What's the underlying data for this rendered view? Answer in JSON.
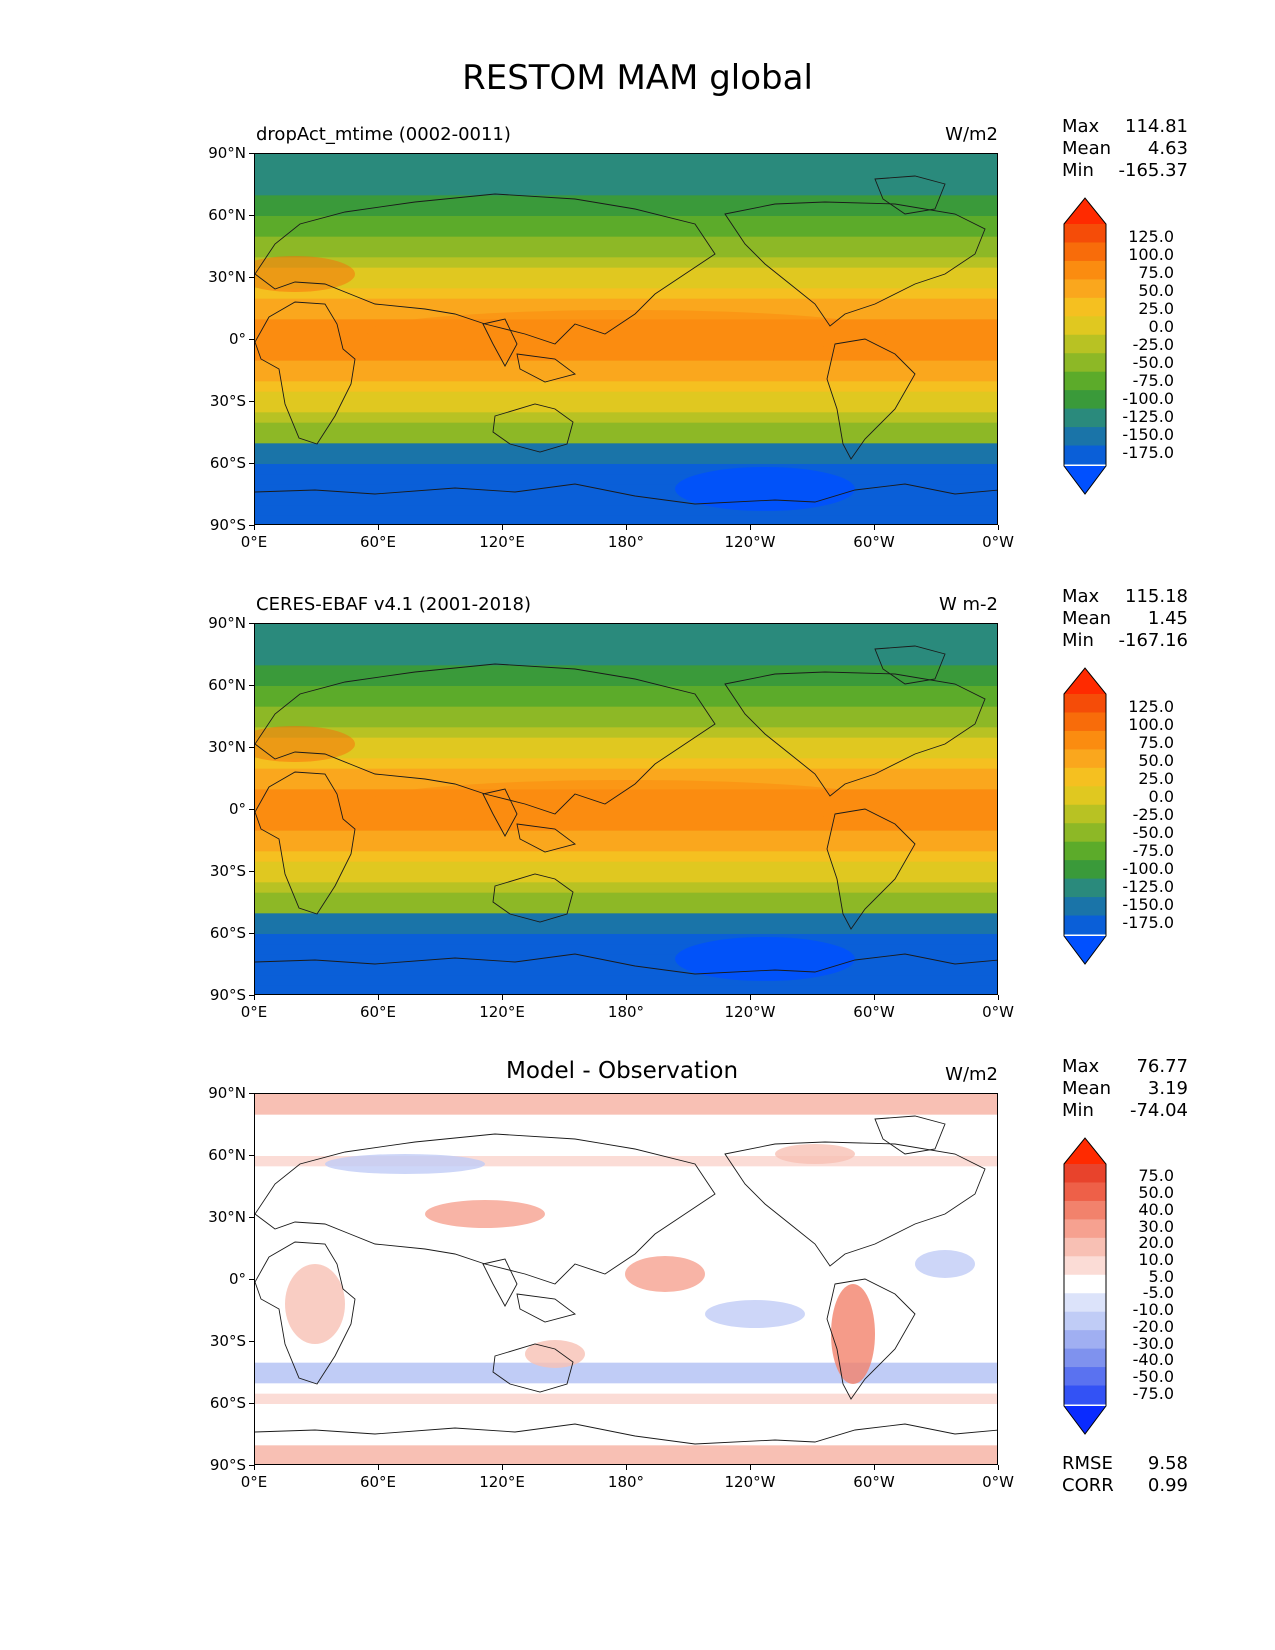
{
  "title": "RESTOM MAM global",
  "lat_ticks": [
    "90°N",
    "60°N",
    "30°N",
    "0°",
    "30°S",
    "60°S",
    "90°S"
  ],
  "lon_ticks": [
    "0°E",
    "60°E",
    "120°E",
    "180°",
    "120°W",
    "60°W",
    "0°W"
  ],
  "colors": {
    "abs_scale": [
      "#0050ff",
      "#0a5fd8",
      "#1a74a8",
      "#2a8a7c",
      "#3a9a3a",
      "#5cab2a",
      "#8db826",
      "#b8c223",
      "#e0c820",
      "#f5c020",
      "#faa71d",
      "#fb8c10",
      "#f86c0a",
      "#f54c08",
      "#ff2a00"
    ],
    "diff_scale": [
      "#0a2bff",
      "#3352f5",
      "#5a72f0",
      "#7f92ee",
      "#a0aff2",
      "#c0ccf6",
      "#dce3fa",
      "#ffffff",
      "#fbdcd6",
      "#f8c0b4",
      "#f6a190",
      "#f2826c",
      "#ee6048",
      "#e8432c",
      "#ff2a00"
    ]
  },
  "panels": [
    {
      "id": "test",
      "title": "dropAct_mtime (0002-0011)",
      "units": "W/m2",
      "stats": [
        {
          "label": "Max",
          "value": "114.81"
        },
        {
          "label": "Mean",
          "value": "4.63"
        },
        {
          "label": "Min",
          "value": "-165.37"
        }
      ],
      "colorbar_labels": [
        "125.0",
        "100.0",
        "75.0",
        "50.0",
        "25.0",
        "0.0",
        "-25.0",
        "-50.0",
        "-75.0",
        "-100.0",
        "-125.0",
        "-150.0",
        "-175.0"
      ],
      "scale": "abs_scale"
    },
    {
      "id": "ref",
      "title": "CERES-EBAF v4.1 (2001-2018)",
      "units": "W m-2",
      "stats": [
        {
          "label": "Max",
          "value": "115.18"
        },
        {
          "label": "Mean",
          "value": "1.45"
        },
        {
          "label": "Min",
          "value": "-167.16"
        }
      ],
      "colorbar_labels": [
        "125.0",
        "100.0",
        "75.0",
        "50.0",
        "25.0",
        "0.0",
        "-25.0",
        "-50.0",
        "-75.0",
        "-100.0",
        "-125.0",
        "-150.0",
        "-175.0"
      ],
      "scale": "abs_scale"
    },
    {
      "id": "diff",
      "title": "Model - Observation",
      "units": "W/m2",
      "stats": [
        {
          "label": "Max",
          "value": "76.77"
        },
        {
          "label": "Mean",
          "value": "3.19"
        },
        {
          "label": "Min",
          "value": "-74.04"
        }
      ],
      "colorbar_labels": [
        "75.0",
        "50.0",
        "40.0",
        "30.0",
        "20.0",
        "10.0",
        "5.0",
        "-5.0",
        "-10.0",
        "-20.0",
        "-30.0",
        "-40.0",
        "-50.0",
        "-75.0"
      ],
      "scale": "diff_scale",
      "metrics": [
        {
          "label": "RMSE",
          "value": "9.58"
        },
        {
          "label": "CORR",
          "value": "0.99"
        }
      ]
    }
  ]
}
